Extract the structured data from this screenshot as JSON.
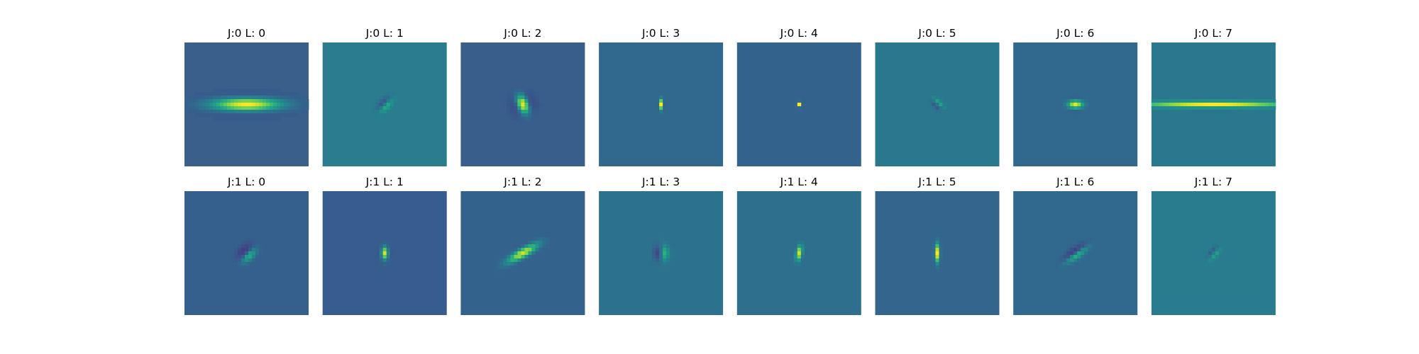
{
  "chart_data": {
    "type": "heatmap",
    "colormap": "viridis",
    "axes_visible": false,
    "panels": [
      {
        "title": "J:0 L: 0",
        "J": 0,
        "L": 0,
        "background": "#3b5f8b",
        "kernel": {
          "theta_deg": 90,
          "sigma_along": 6.5,
          "sigma_across": 1.7,
          "frequency": 0.55,
          "phase": "even",
          "amplitude": 1.0
        }
      },
      {
        "title": "J:0 L: 1",
        "J": 0,
        "L": 1,
        "background": "#2b7d8e",
        "kernel": {
          "theta_deg": 45,
          "sigma_along": 1.6,
          "sigma_across": 1.0,
          "frequency": 1.3,
          "phase": "odd",
          "amplitude": 0.55
        }
      },
      {
        "title": "J:0 L: 2",
        "J": 0,
        "L": 2,
        "background": "#3a5e8c",
        "kernel": {
          "theta_deg": -20,
          "sigma_along": 1.8,
          "sigma_across": 1.8,
          "frequency": 0.8,
          "phase": "even",
          "amplitude": 0.95
        }
      },
      {
        "title": "J:0 L: 3",
        "J": 0,
        "L": 3,
        "background": "#31688e",
        "kernel": {
          "theta_deg": 0,
          "sigma_along": 1.0,
          "sigma_across": 0.45,
          "frequency": 1.8,
          "phase": "even",
          "amplitude": 1.0
        }
      },
      {
        "title": "J:0 L: 4",
        "J": 0,
        "L": 4,
        "background": "#33638d",
        "kernel": {
          "theta_deg": 0,
          "sigma_along": 0.4,
          "sigma_across": 0.3,
          "frequency": 2.4,
          "phase": "even",
          "amplitude": 1.0
        }
      },
      {
        "title": "J:0 L: 5",
        "J": 0,
        "L": 5,
        "background": "#2a788e",
        "kernel": {
          "theta_deg": -45,
          "sigma_along": 1.3,
          "sigma_across": 0.7,
          "frequency": 1.5,
          "phase": "odd",
          "amplitude": 0.6
        }
      },
      {
        "title": "J:0 L: 6",
        "J": 0,
        "L": 6,
        "background": "#31688e",
        "kernel": {
          "theta_deg": 90,
          "sigma_along": 1.4,
          "sigma_across": 1.1,
          "frequency": 0.9,
          "phase": "even",
          "amplitude": 0.95
        }
      },
      {
        "title": "J:0 L: 7",
        "J": 0,
        "L": 7,
        "background": "#2a788e",
        "kernel": {
          "theta_deg": 90,
          "sigma_along": 14.0,
          "sigma_across": 0.75,
          "frequency": 1.1,
          "phase": "even",
          "amplitude": 1.0
        }
      },
      {
        "title": "J:1 L: 0",
        "J": 1,
        "L": 0,
        "background": "#355f8d",
        "kernel": {
          "theta_deg": 45,
          "sigma_along": 1.8,
          "sigma_across": 1.3,
          "frequency": 0.8,
          "phase": "odd",
          "amplitude": 0.8
        }
      },
      {
        "title": "J:1 L: 1",
        "J": 1,
        "L": 1,
        "background": "#365d8d",
        "kernel": {
          "theta_deg": 0,
          "sigma_along": 1.2,
          "sigma_across": 0.9,
          "frequency": 1.1,
          "phase": "even",
          "amplitude": 0.9
        }
      },
      {
        "title": "J:1 L: 2",
        "J": 1,
        "L": 2,
        "background": "#33638d",
        "kernel": {
          "theta_deg": 60,
          "sigma_along": 3.2,
          "sigma_across": 1.2,
          "frequency": 0.75,
          "phase": "even",
          "amplitude": 0.9
        }
      },
      {
        "title": "J:1 L: 3",
        "J": 1,
        "L": 3,
        "background": "#2c728e",
        "kernel": {
          "theta_deg": 0,
          "sigma_along": 1.5,
          "sigma_across": 1.2,
          "frequency": 0.8,
          "phase": "odd",
          "amplitude": 0.85
        }
      },
      {
        "title": "J:1 L: 4",
        "J": 1,
        "L": 4,
        "background": "#2e6f8e",
        "kernel": {
          "theta_deg": 10,
          "sigma_along": 1.4,
          "sigma_across": 0.8,
          "frequency": 1.2,
          "phase": "even",
          "amplitude": 0.9
        }
      },
      {
        "title": "J:1 L: 5",
        "J": 1,
        "L": 5,
        "background": "#33658d",
        "kernel": {
          "theta_deg": 0,
          "sigma_along": 1.8,
          "sigma_across": 0.55,
          "frequency": 1.2,
          "phase": "even",
          "amplitude": 1.0
        }
      },
      {
        "title": "J:1 L: 6",
        "J": 1,
        "L": 6,
        "background": "#31688e",
        "kernel": {
          "theta_deg": 55,
          "sigma_along": 2.4,
          "sigma_across": 0.9,
          "frequency": 1.0,
          "phase": "odd",
          "amplitude": 0.9
        }
      },
      {
        "title": "J:1 L: 7",
        "J": 1,
        "L": 7,
        "background": "#287c8e",
        "kernel": {
          "theta_deg": 45,
          "sigma_along": 1.4,
          "sigma_across": 0.7,
          "frequency": 1.4,
          "phase": "odd",
          "amplitude": 0.55
        }
      }
    ]
  }
}
